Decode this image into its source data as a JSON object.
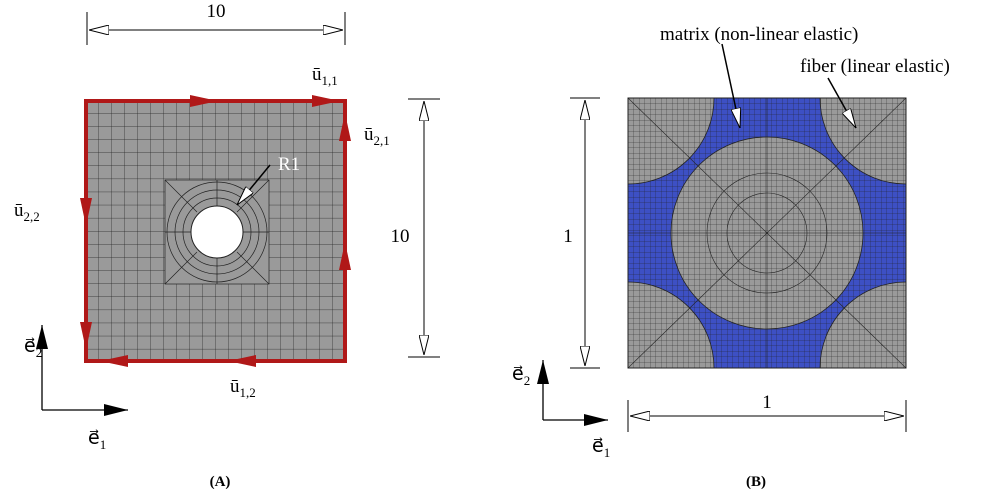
{
  "panel_a": {
    "width_label": "10",
    "height_label": "10",
    "hole_label": "R1",
    "u11": {
      "symbol": "ū",
      "subscript": "1,1"
    },
    "u21": {
      "symbol": "ū",
      "subscript": "2,1"
    },
    "u22": {
      "symbol": "ū",
      "subscript": "2,2"
    },
    "u12": {
      "symbol": "ū",
      "subscript": "1,2"
    },
    "e2": {
      "symbol": "e⃗",
      "subscript": "2"
    },
    "e1": {
      "symbol": "e⃗",
      "subscript": "1"
    },
    "caption": "(A)"
  },
  "panel_b": {
    "matrix_label": "matrix (non-linear elastic)",
    "fiber_label": "fiber (linear elastic)",
    "height_label": "1",
    "width_label": "1",
    "e2": {
      "symbol": "e⃗",
      "subscript": "2"
    },
    "e1": {
      "symbol": "e⃗",
      "subscript": "1"
    },
    "caption": "(B)"
  }
}
